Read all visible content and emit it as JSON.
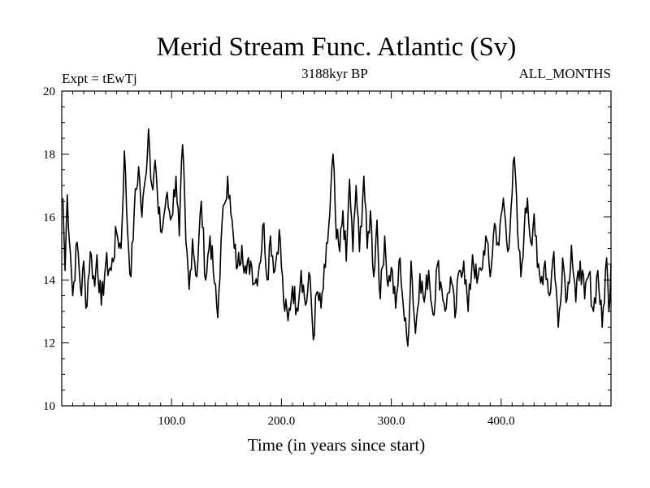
{
  "chart_data": {
    "type": "line",
    "title": "Merid Stream Func. Atlantic (Sv)",
    "subtitle_left": "Expt = tEwTj",
    "subtitle_center": "3188kyr BP",
    "subtitle_right": "ALL_MONTHS",
    "xlabel": "Time (in years since start)",
    "ylabel": "",
    "xlim": [
      0,
      500
    ],
    "ylim": [
      10,
      20
    ],
    "x_tick_labels": [
      "100.0",
      "200.0",
      "300.0",
      "400.0"
    ],
    "x_tick_values": [
      100,
      200,
      300,
      400
    ],
    "y_tick_labels": [
      "10",
      "12",
      "14",
      "16",
      "18",
      "20"
    ],
    "y_tick_values": [
      10,
      12,
      14,
      16,
      18,
      20
    ],
    "grid": false,
    "series": [
      {
        "name": "Merid Stream Func. Atlantic",
        "color": "#000000",
        "keypoints": [
          [
            1,
            16.6
          ],
          [
            3,
            14.3
          ],
          [
            5,
            16.7
          ],
          [
            8,
            14.8
          ],
          [
            10,
            13.5
          ],
          [
            14,
            15.2
          ],
          [
            18,
            13.5
          ],
          [
            20,
            14.6
          ],
          [
            22,
            13.1
          ],
          [
            26,
            14.9
          ],
          [
            30,
            13.8
          ],
          [
            32,
            14.8
          ],
          [
            36,
            13.2
          ],
          [
            40,
            14.5
          ],
          [
            45,
            14.3
          ],
          [
            50,
            15.5
          ],
          [
            54,
            15.0
          ],
          [
            57,
            18.1
          ],
          [
            60,
            15.5
          ],
          [
            63,
            14.1
          ],
          [
            66,
            16.2
          ],
          [
            70,
            17.6
          ],
          [
            73,
            16.0
          ],
          [
            76,
            17.2
          ],
          [
            79,
            18.8
          ],
          [
            82,
            17.0
          ],
          [
            85,
            17.8
          ],
          [
            88,
            16.1
          ],
          [
            91,
            15.5
          ],
          [
            95,
            16.6
          ],
          [
            100,
            16.0
          ],
          [
            104,
            17.3
          ],
          [
            107,
            15.4
          ],
          [
            110,
            18.3
          ],
          [
            113,
            15.2
          ],
          [
            116,
            13.7
          ],
          [
            119,
            15.3
          ],
          [
            123,
            14.1
          ],
          [
            127,
            16.5
          ],
          [
            131,
            14.0
          ],
          [
            135,
            15.4
          ],
          [
            139,
            13.9
          ],
          [
            142,
            12.8
          ],
          [
            145,
            15.2
          ],
          [
            148,
            16.4
          ],
          [
            151,
            17.3
          ],
          [
            154,
            16.1
          ],
          [
            157,
            15.0
          ],
          [
            160,
            14.4
          ],
          [
            164,
            15.1
          ],
          [
            168,
            14.2
          ],
          [
            172,
            14.6
          ],
          [
            176,
            13.9
          ],
          [
            180,
            14.5
          ],
          [
            184,
            15.8
          ],
          [
            187,
            14.0
          ],
          [
            190,
            15.4
          ],
          [
            194,
            14.3
          ],
          [
            198,
            15.6
          ],
          [
            202,
            13.3
          ],
          [
            206,
            12.7
          ],
          [
            210,
            13.8
          ],
          [
            214,
            13.1
          ],
          [
            218,
            14.3
          ],
          [
            222,
            13.2
          ],
          [
            226,
            14.1
          ],
          [
            229,
            12.1
          ],
          [
            232,
            13.6
          ],
          [
            236,
            13.1
          ],
          [
            240,
            14.4
          ],
          [
            244,
            16.1
          ],
          [
            247,
            18.0
          ],
          [
            250,
            15.3
          ],
          [
            253,
            14.9
          ],
          [
            256,
            16.2
          ],
          [
            259,
            14.6
          ],
          [
            262,
            17.2
          ],
          [
            265,
            14.9
          ],
          [
            268,
            17.0
          ],
          [
            271,
            14.9
          ],
          [
            275,
            17.3
          ],
          [
            278,
            15.0
          ],
          [
            281,
            16.2
          ],
          [
            284,
            14.1
          ],
          [
            287,
            15.9
          ],
          [
            290,
            13.4
          ],
          [
            294,
            15.4
          ],
          [
            297,
            13.8
          ],
          [
            300,
            14.4
          ],
          [
            304,
            13.1
          ],
          [
            308,
            14.7
          ],
          [
            312,
            12.7
          ],
          [
            315,
            11.9
          ],
          [
            318,
            14.6
          ],
          [
            322,
            12.3
          ],
          [
            326,
            14.2
          ],
          [
            330,
            13.3
          ],
          [
            334,
            14.3
          ],
          [
            338,
            12.9
          ],
          [
            342,
            14.5
          ],
          [
            346,
            13.7
          ],
          [
            350,
            13.1
          ],
          [
            354,
            14.1
          ],
          [
            358,
            12.8
          ],
          [
            362,
            14.3
          ],
          [
            366,
            14.6
          ],
          [
            370,
            13.0
          ],
          [
            374,
            14.8
          ],
          [
            378,
            13.9
          ],
          [
            382,
            14.3
          ],
          [
            386,
            15.4
          ],
          [
            390,
            14.1
          ],
          [
            394,
            15.8
          ],
          [
            398,
            15.1
          ],
          [
            402,
            16.6
          ],
          [
            406,
            14.9
          ],
          [
            409,
            16.3
          ],
          [
            412,
            17.9
          ],
          [
            415,
            15.5
          ],
          [
            418,
            14.1
          ],
          [
            421,
            15.6
          ],
          [
            424,
            16.6
          ],
          [
            427,
            15.2
          ],
          [
            430,
            16.1
          ],
          [
            433,
            14.4
          ],
          [
            436,
            13.9
          ],
          [
            440,
            14.6
          ],
          [
            444,
            13.5
          ],
          [
            448,
            14.9
          ],
          [
            452,
            12.5
          ],
          [
            456,
            14.7
          ],
          [
            460,
            13.4
          ],
          [
            464,
            15.1
          ],
          [
            468,
            13.3
          ],
          [
            472,
            14.6
          ],
          [
            476,
            13.4
          ],
          [
            480,
            14.2
          ],
          [
            484,
            13.0
          ],
          [
            488,
            14.3
          ],
          [
            492,
            12.5
          ],
          [
            496,
            14.7
          ],
          [
            498,
            13.0
          ],
          [
            500,
            14.5
          ]
        ]
      }
    ]
  }
}
